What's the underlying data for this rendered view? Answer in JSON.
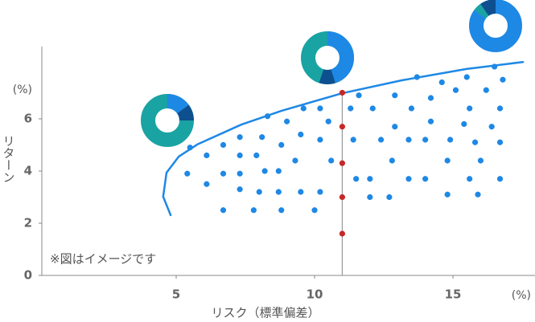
{
  "chart_data": {
    "type": "scatter",
    "x_label": "リスク（標準偏差）",
    "y_label": "リターン",
    "x_unit": "(%)",
    "y_unit": "(%)",
    "annotation": "※図はイメージです",
    "xlim": [
      0,
      17.9
    ],
    "ylim": [
      0,
      8.8
    ],
    "xticks": [
      5,
      10,
      15
    ],
    "yticks": [
      0,
      2,
      4,
      6
    ],
    "reference_x": 11,
    "series": [
      {
        "type": "scatter",
        "color": "#1e88e5",
        "x": [
          5.4,
          5.5,
          6.1,
          6.1,
          6.7,
          6.7,
          6.7,
          7.3,
          7.3,
          7.3,
          7.3,
          7.8,
          7.9,
          8.0,
          8.1,
          8.3,
          8.2,
          8.7,
          8.7,
          8.8,
          8.8,
          9.0,
          9.3,
          9.5,
          9.5,
          9.6,
          10.0,
          10.2,
          10.2,
          10.2,
          10.5,
          10.6,
          11.3,
          11.4,
          11.5,
          11.6,
          12.0,
          12.0,
          12.1,
          12.4,
          12.7,
          12.9,
          12.9,
          12.8,
          13.4,
          13.5,
          13.4,
          13.7,
          14.0,
          14.0,
          14.2,
          14.2,
          14.6,
          14.8,
          14.8,
          14.9,
          15.1,
          15.4,
          15.5,
          15.6,
          15.6,
          15.8,
          15.9,
          16.0,
          16.2,
          16.4,
          16.5,
          16.7,
          16.7,
          16.7,
          16.8
        ],
        "values": [
          3.9,
          4.9,
          4.6,
          3.5,
          5.0,
          3.9,
          2.5,
          5.3,
          4.6,
          3.9,
          3.3,
          2.5,
          4.6,
          3.2,
          5.3,
          6.1,
          4.0,
          4.0,
          3.2,
          5.0,
          2.5,
          5.9,
          4.4,
          5.4,
          3.2,
          6.4,
          2.5,
          6.4,
          5.2,
          3.2,
          5.9,
          4.4,
          6.4,
          5.2,
          3.7,
          6.9,
          3.7,
          3.0,
          6.4,
          5.2,
          3.0,
          6.9,
          5.7,
          4.4,
          5.2,
          6.4,
          3.7,
          7.6,
          5.2,
          3.7,
          6.8,
          5.9,
          7.4,
          3.1,
          4.4,
          5.2,
          7.1,
          5.8,
          7.6,
          3.7,
          6.4,
          5.1,
          3.1,
          4.4,
          7.1,
          5.7,
          8.0,
          3.7,
          6.4,
          5.1,
          7.5
        ]
      },
      {
        "type": "scatter",
        "color": "#c62828",
        "x": [
          11,
          11,
          11,
          11,
          11
        ],
        "values": [
          7.0,
          5.7,
          4.3,
          3.0,
          1.6
        ]
      },
      {
        "type": "line",
        "color": "#1e88e5",
        "x": [
          4.8,
          4.53,
          4.65,
          5.09,
          5.76,
          7.35,
          8.81,
          10.99,
          13.17,
          15.49,
          17.53
        ],
        "values": [
          2.31,
          3.02,
          3.94,
          4.55,
          5.02,
          5.78,
          6.31,
          6.98,
          7.48,
          7.91,
          8.18
        ]
      }
    ]
  }
}
